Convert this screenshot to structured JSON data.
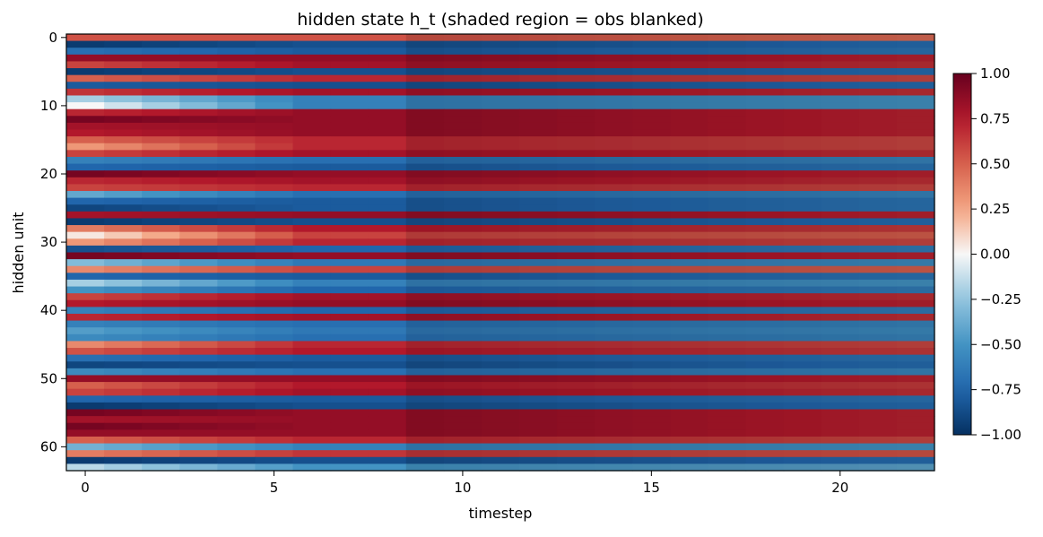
{
  "chart_data": {
    "type": "heatmap",
    "title": "hidden state h_t (shaded region = obs blanked)",
    "xlabel": "timestep",
    "ylabel": "hidden unit",
    "n_timesteps": 23,
    "n_units": 64,
    "xlim": [
      -0.5,
      22.5
    ],
    "ylim": [
      63.5,
      -0.5
    ],
    "x_ticks": [
      0,
      5,
      10,
      15,
      20
    ],
    "y_ticks": [
      0,
      10,
      20,
      30,
      40,
      50,
      60
    ],
    "colormap": "RdBu_r",
    "value_range": [
      -1.0,
      1.0
    ],
    "colorbar_ticks": [
      "1.00",
      "0.75",
      "0.50",
      "0.25",
      "0.00",
      "−0.25",
      "−0.50",
      "−0.75",
      "−1.00"
    ],
    "blanked_from_timestep": 9,
    "initial_values": [
      0.55,
      -0.95,
      -0.7,
      0.85,
      0.6,
      -0.95,
      0.5,
      -0.8,
      0.65,
      -0.2,
      0.0,
      0.7,
      0.95,
      0.8,
      0.75,
      0.5,
      0.3,
      0.6,
      -0.6,
      -0.75,
      0.95,
      0.7,
      0.6,
      -0.4,
      -0.75,
      -0.9,
      0.8,
      -0.95,
      0.4,
      0.05,
      0.3,
      -0.85,
      0.95,
      -0.3,
      0.35,
      -0.75,
      -0.2,
      -0.5,
      0.6,
      0.75,
      -0.6,
      0.7,
      -0.6,
      -0.45,
      -0.55,
      0.35,
      0.55,
      -0.7,
      -0.9,
      -0.55,
      0.85,
      0.5,
      0.6,
      -0.75,
      -0.95,
      0.95,
      0.8,
      0.95,
      0.85,
      0.5,
      -0.35,
      0.4,
      -0.95,
      -0.15
    ],
    "steady_values": [
      0.55,
      -0.85,
      -0.8,
      0.85,
      0.8,
      -0.85,
      0.7,
      -0.85,
      0.8,
      -0.6,
      -0.6,
      0.85,
      0.85,
      0.85,
      0.85,
      0.7,
      0.7,
      0.8,
      -0.7,
      -0.8,
      0.85,
      0.8,
      0.7,
      -0.7,
      -0.8,
      -0.8,
      0.85,
      -0.85,
      0.75,
      0.6,
      0.7,
      -0.75,
      0.85,
      -0.65,
      0.6,
      -0.8,
      -0.6,
      -0.75,
      0.8,
      0.85,
      -0.75,
      0.8,
      -0.7,
      -0.65,
      -0.7,
      0.7,
      0.75,
      -0.8,
      -0.85,
      -0.7,
      0.85,
      0.75,
      0.8,
      -0.8,
      -0.85,
      0.85,
      0.85,
      0.85,
      0.85,
      0.7,
      -0.6,
      0.65,
      -0.85,
      -0.5
    ]
  }
}
